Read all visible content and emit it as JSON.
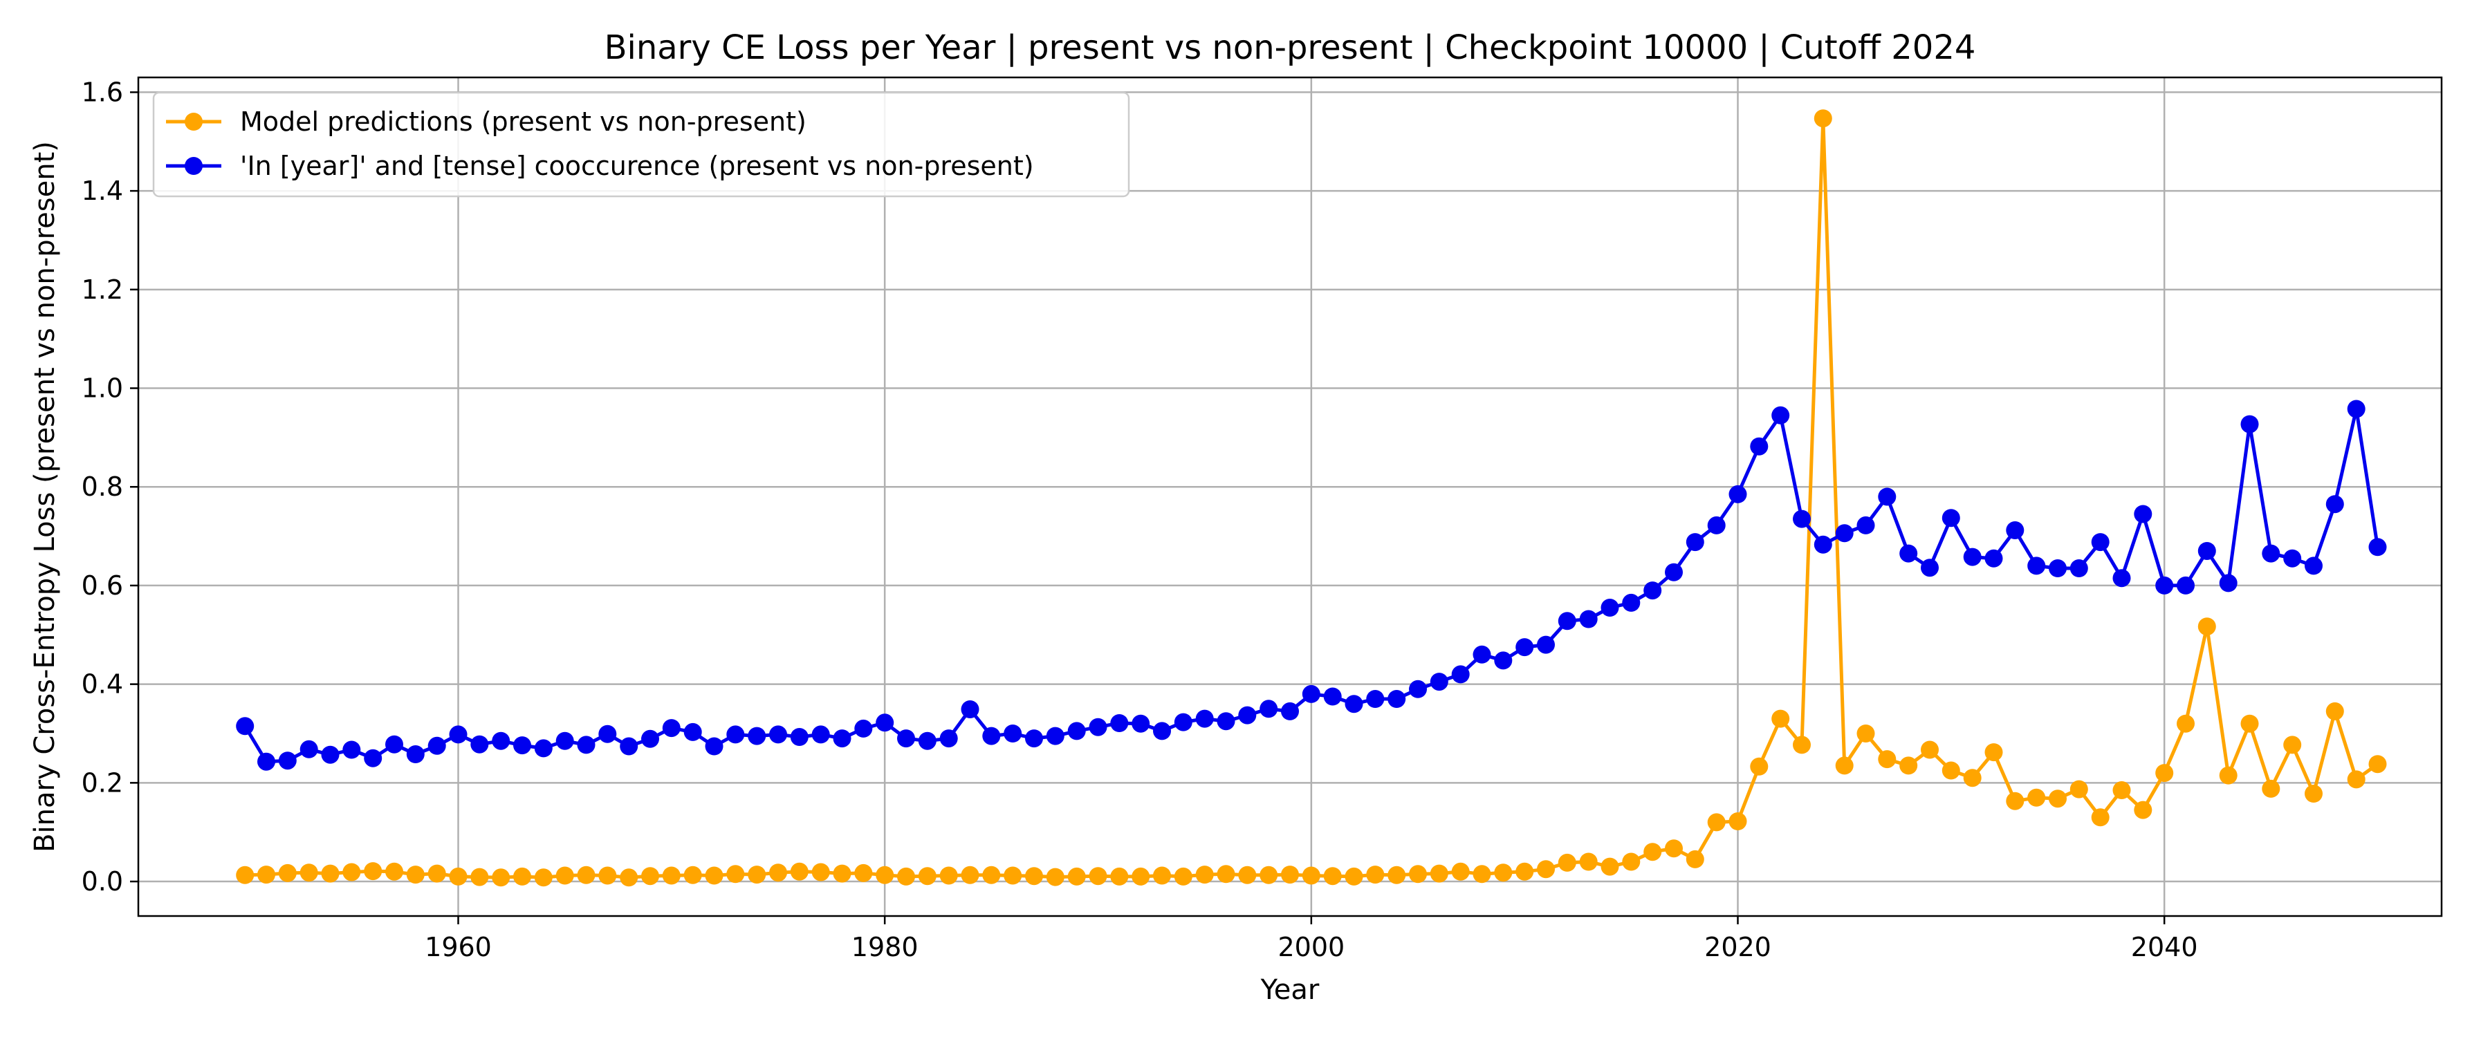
{
  "chart_data": {
    "type": "line",
    "title": "Binary CE Loss per Year | present vs non-present | Checkpoint 10000 | Cutoff 2024",
    "xlabel": "Year",
    "ylabel": "Binary Cross-Entropy Loss (present vs non-present)",
    "xlim": [
      1945,
      2053
    ],
    "ylim": [
      -0.07,
      1.63
    ],
    "x_ticks": [
      1960,
      1980,
      2000,
      2020,
      2040
    ],
    "y_ticks": [
      0.0,
      0.2,
      0.4,
      0.6,
      0.8,
      1.0,
      1.2,
      1.4,
      1.6
    ],
    "x_tick_labels": [
      "1960",
      "1980",
      "2000",
      "2020",
      "2040"
    ],
    "y_tick_labels": [
      "0.0",
      "0.2",
      "0.4",
      "0.6",
      "0.8",
      "1.0",
      "1.2",
      "1.4",
      "1.6"
    ],
    "grid": true,
    "legend_position": "top-left",
    "x": [
      1950,
      1951,
      1952,
      1953,
      1954,
      1955,
      1956,
      1957,
      1958,
      1959,
      1960,
      1961,
      1962,
      1963,
      1964,
      1965,
      1966,
      1967,
      1968,
      1969,
      1970,
      1971,
      1972,
      1973,
      1974,
      1975,
      1976,
      1977,
      1978,
      1979,
      1980,
      1981,
      1982,
      1983,
      1984,
      1985,
      1986,
      1987,
      1988,
      1989,
      1990,
      1991,
      1992,
      1993,
      1994,
      1995,
      1996,
      1997,
      1998,
      1999,
      2000,
      2001,
      2002,
      2003,
      2004,
      2005,
      2006,
      2007,
      2008,
      2009,
      2010,
      2011,
      2012,
      2013,
      2014,
      2015,
      2016,
      2017,
      2018,
      2019,
      2020,
      2021,
      2022,
      2023,
      2024,
      2025,
      2026,
      2027,
      2028,
      2029,
      2030,
      2031,
      2032,
      2033,
      2034,
      2035,
      2036,
      2037,
      2038,
      2039,
      2040,
      2041,
      2042,
      2043,
      2044,
      2045,
      2046,
      2047,
      2048,
      2049,
      2050
    ],
    "series": [
      {
        "name": "Model predictions (present vs non-present)",
        "color": "#FFA500",
        "values": [
          0.013,
          0.014,
          0.017,
          0.018,
          0.016,
          0.019,
          0.021,
          0.02,
          0.014,
          0.016,
          0.01,
          0.009,
          0.008,
          0.01,
          0.008,
          0.012,
          0.013,
          0.012,
          0.008,
          0.011,
          0.012,
          0.013,
          0.012,
          0.015,
          0.014,
          0.018,
          0.02,
          0.019,
          0.016,
          0.017,
          0.013,
          0.01,
          0.011,
          0.012,
          0.013,
          0.013,
          0.012,
          0.011,
          0.009,
          0.01,
          0.011,
          0.01,
          0.01,
          0.012,
          0.01,
          0.014,
          0.015,
          0.013,
          0.013,
          0.014,
          0.012,
          0.011,
          0.01,
          0.014,
          0.013,
          0.015,
          0.016,
          0.02,
          0.015,
          0.018,
          0.02,
          0.025,
          0.038,
          0.04,
          0.03,
          0.04,
          0.06,
          0.067,
          0.045,
          0.12,
          0.122,
          0.233,
          0.33,
          0.277,
          1.547,
          0.235,
          0.3,
          0.248,
          0.235,
          0.267,
          0.225,
          0.21,
          0.262,
          0.163,
          0.17,
          0.168,
          0.187,
          0.13,
          0.185,
          0.145,
          0.22,
          0.32,
          0.517,
          0.215,
          0.32,
          0.188,
          0.277,
          0.178,
          0.345,
          0.207,
          0.238
        ]
      },
      {
        "name": "'In [year]' and [tense] cooccurence (present vs non-present)",
        "color": "#0000EE",
        "values": [
          0.315,
          0.243,
          0.245,
          0.268,
          0.257,
          0.267,
          0.25,
          0.278,
          0.258,
          0.275,
          0.298,
          0.278,
          0.285,
          0.276,
          0.27,
          0.285,
          0.277,
          0.299,
          0.274,
          0.289,
          0.311,
          0.303,
          0.274,
          0.298,
          0.295,
          0.298,
          0.293,
          0.298,
          0.29,
          0.31,
          0.322,
          0.29,
          0.285,
          0.29,
          0.349,
          0.295,
          0.3,
          0.29,
          0.295,
          0.305,
          0.313,
          0.321,
          0.32,
          0.305,
          0.323,
          0.33,
          0.325,
          0.337,
          0.35,
          0.345,
          0.38,
          0.375,
          0.36,
          0.37,
          0.37,
          0.39,
          0.405,
          0.42,
          0.46,
          0.448,
          0.475,
          0.48,
          0.528,
          0.532,
          0.555,
          0.565,
          0.59,
          0.627,
          0.688,
          0.722,
          0.785,
          0.882,
          0.945,
          0.735,
          0.683,
          0.706,
          0.722,
          0.78,
          0.665,
          0.636,
          0.737,
          0.658,
          0.655,
          0.712,
          0.64,
          0.635,
          0.635,
          0.688,
          0.615,
          0.745,
          0.6,
          0.6,
          0.67,
          0.605,
          0.927,
          0.665,
          0.655,
          0.64,
          0.765,
          0.958,
          0.678
        ]
      }
    ]
  }
}
